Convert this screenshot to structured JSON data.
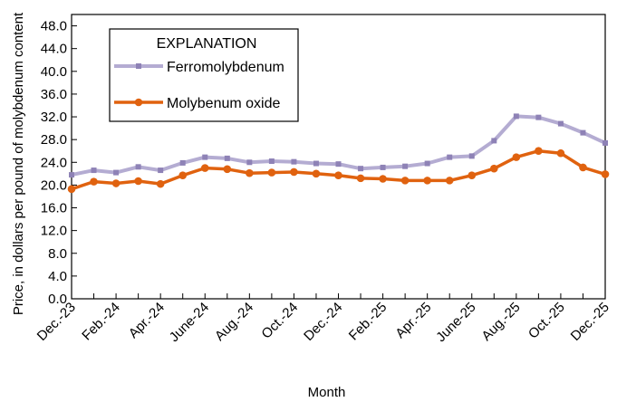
{
  "chart_data": {
    "type": "line",
    "xlabel": "Month",
    "ylabel": "Price, in dollars per pound of molybdenum content",
    "ylim": [
      0,
      50
    ],
    "yticks": [
      "0.0",
      "4.0",
      "8.0",
      "12.0",
      "16.0",
      "20.0",
      "24.0",
      "28.0",
      "32.0",
      "36.0",
      "40.0",
      "44.0",
      "48.0"
    ],
    "x": [
      "Dec.-23",
      "Jan.-24",
      "Feb.-24",
      "Mar.-24",
      "Apr.-24",
      "May-24",
      "June-24",
      "July-24",
      "Aug.-24",
      "Sep.-24",
      "Oct.-24",
      "Nov.-24",
      "Dec.-24",
      "Jan.-25",
      "Feb.-25",
      "Mar.-25",
      "Apr.-25",
      "May-25",
      "June-25",
      "July-25",
      "Aug.-25",
      "Sep.-25",
      "Oct.-25",
      "Nov.-25",
      "Dec.-25"
    ],
    "xtick_labels": [
      "Dec.-23",
      "Feb.-24",
      "Apr.-24",
      "June-24",
      "Aug.-24",
      "Oct.-24",
      "Dec.-24",
      "Feb.-25",
      "Apr.-25",
      "June-25",
      "Aug.-25",
      "Oct.-25",
      "Dec.-25"
    ],
    "legend": {
      "title": "EXPLANATION",
      "placement": "top-left"
    },
    "grid": false,
    "series": [
      {
        "name": "Ferromolybdenum",
        "color": "#b4acd2",
        "marker_color": "#8e82b6",
        "marker": "square",
        "values": [
          21.8,
          22.6,
          22.2,
          23.2,
          22.6,
          23.9,
          24.9,
          24.7,
          24.0,
          24.2,
          24.1,
          23.8,
          23.7,
          22.9,
          23.1,
          23.3,
          23.8,
          24.9,
          25.1,
          27.8,
          32.1,
          31.9,
          30.8,
          29.2,
          27.4
        ]
      },
      {
        "name": "Molybenum oxide",
        "color": "#e0620f",
        "marker_color": "#e0620f",
        "marker": "circle",
        "values": [
          19.3,
          20.6,
          20.3,
          20.7,
          20.2,
          21.7,
          23.0,
          22.8,
          22.1,
          22.2,
          22.3,
          22.0,
          21.7,
          21.2,
          21.1,
          20.8,
          20.8,
          20.8,
          21.7,
          22.9,
          24.9,
          26.0,
          25.6,
          23.1,
          21.9
        ]
      }
    ]
  }
}
